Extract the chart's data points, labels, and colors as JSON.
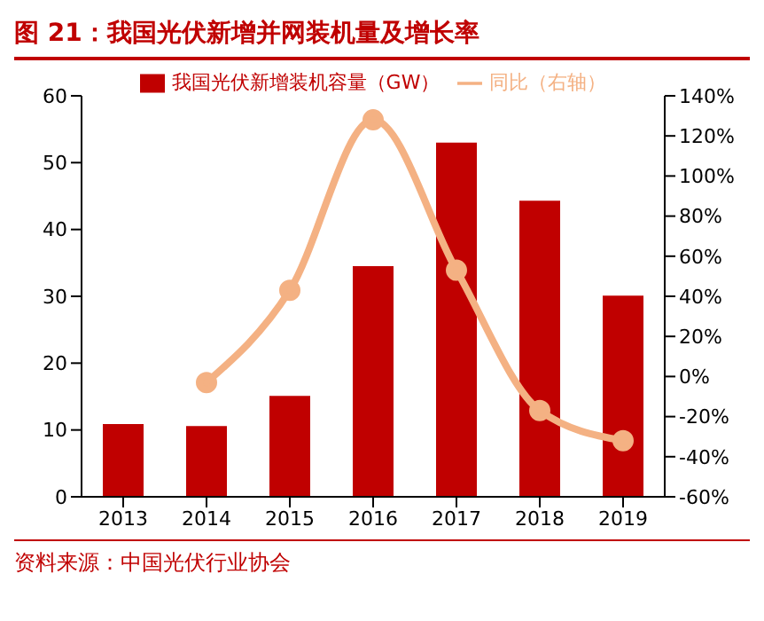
{
  "chart_data": {
    "type": "bar",
    "title": "图 21：我国光伏新增并网装机量及增长率",
    "categories": [
      "2013",
      "2014",
      "2015",
      "2016",
      "2017",
      "2018",
      "2019"
    ],
    "series": [
      {
        "name": "我国光伏新增装机容量（GW）",
        "color": "#c00000",
        "values": [
          10.9,
          10.6,
          15.1,
          34.5,
          53,
          44.3,
          30.1
        ]
      },
      {
        "name": "同比（右轴）",
        "type": "line",
        "axis": "y2",
        "color": "#f4b183",
        "marker": "circle",
        "values": [
          null,
          -3,
          43,
          128,
          53,
          -17,
          -32
        ]
      }
    ],
    "ylim": [
      0,
      60
    ],
    "yticks": [
      0,
      10,
      20,
      30,
      40,
      50,
      60
    ],
    "y2lim": [
      -60,
      140
    ],
    "y2ticks": [
      {
        "value": -60,
        "label": "-60%"
      },
      {
        "value": -40,
        "label": "-40%"
      },
      {
        "value": -20,
        "label": "-20%"
      },
      {
        "value": 0,
        "label": "0%"
      },
      {
        "value": 20,
        "label": "20%"
      },
      {
        "value": 40,
        "label": "40%"
      },
      {
        "value": 60,
        "label": "60%"
      },
      {
        "value": 80,
        "label": "80%"
      },
      {
        "value": 100,
        "label": "100%"
      },
      {
        "value": 120,
        "label": "120%"
      },
      {
        "value": 140,
        "label": "140%"
      }
    ],
    "legend": "top",
    "grid": false,
    "annotations": [
      "资料来源：中国光伏行业协会"
    ]
  }
}
